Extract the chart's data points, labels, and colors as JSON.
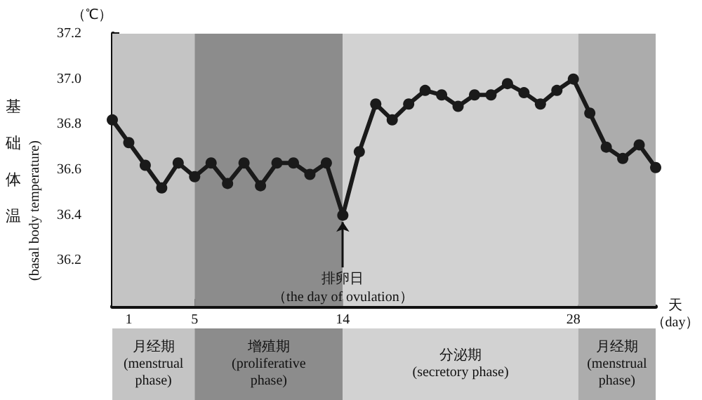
{
  "chart_data": {
    "type": "line",
    "xlabel": "天",
    "ylabel": "基础体温\n(basal body temperature)",
    "annotations": [
      "（℃）",
      "（day）",
      {
        "text": "排卵日",
        "x": 14,
        "y": 36.4
      },
      "（the day of ovulation）"
    ],
    "x": [
      0,
      1,
      2,
      3,
      4,
      5,
      6,
      7,
      8,
      9,
      10,
      11,
      12,
      13,
      14,
      15,
      16,
      17,
      18,
      19,
      20,
      21,
      22,
      23,
      24,
      25,
      26,
      27,
      28,
      29,
      30,
      31,
      32,
      33
    ],
    "series": [
      {
        "color": "#1a1a1a",
        "values": [
          36.82,
          36.72,
          36.62,
          36.52,
          36.63,
          36.57,
          36.63,
          36.54,
          36.63,
          36.53,
          36.63,
          36.63,
          36.58,
          36.63,
          36.4,
          36.68,
          36.89,
          36.82,
          36.89,
          36.95,
          36.93,
          36.88,
          36.93,
          36.93,
          36.98,
          36.94,
          36.89,
          36.95,
          37.0,
          36.85,
          36.7,
          36.65,
          36.71,
          36.61
        ]
      }
    ],
    "xlim": [
      0,
      33
    ],
    "xticks": [
      {
        "value": 1,
        "label": "1"
      },
      {
        "value": 2,
        "label": null
      },
      {
        "value": 3,
        "label": null
      },
      {
        "value": 4,
        "label": null
      },
      {
        "value": 5,
        "label": "5"
      },
      {
        "value": 6,
        "label": null
      },
      {
        "value": 7,
        "label": null
      },
      {
        "value": 8,
        "label": null
      },
      {
        "value": 9,
        "label": null
      },
      {
        "value": 10,
        "label": null
      },
      {
        "value": 11,
        "label": null
      },
      {
        "value": 12,
        "label": null
      },
      {
        "value": 13,
        "label": null
      },
      {
        "value": 14,
        "label": "14"
      },
      {
        "value": 15,
        "label": null
      },
      {
        "value": 16,
        "label": null
      },
      {
        "value": 17,
        "label": null
      },
      {
        "value": 18,
        "label": null
      },
      {
        "value": 19,
        "label": null
      },
      {
        "value": 20,
        "label": null
      },
      {
        "value": 21,
        "label": null
      },
      {
        "value": 22,
        "label": null
      },
      {
        "value": 23,
        "label": null
      },
      {
        "value": 24,
        "label": null
      },
      {
        "value": 25,
        "label": null
      },
      {
        "value": 26,
        "label": null
      },
      {
        "value": 27,
        "label": null
      },
      {
        "value": 28,
        "label": "28"
      },
      {
        "value": 29,
        "label": null
      },
      {
        "value": 30,
        "label": null
      },
      {
        "value": 31,
        "label": null
      },
      {
        "value": 32,
        "label": null
      }
    ],
    "ylim": [
      36.0,
      37.2
    ],
    "yticks": [
      {
        "value": 36.1,
        "label": null
      },
      {
        "value": 36.2,
        "label": "36.2"
      },
      {
        "value": 36.3,
        "label": null
      },
      {
        "value": 36.4,
        "label": "36.4"
      },
      {
        "value": 36.5,
        "label": null
      },
      {
        "value": 36.6,
        "label": "36.6"
      },
      {
        "value": 36.7,
        "label": null
      },
      {
        "value": 36.8,
        "label": "36.8"
      },
      {
        "value": 36.9,
        "label": null
      },
      {
        "value": 37.0,
        "label": "37.0"
      },
      {
        "value": 37.1,
        "label": null
      },
      {
        "value": 37.2,
        "label": "37.2"
      }
    ],
    "bands": [
      {
        "axis": "x",
        "from": 0,
        "to": 5,
        "label": "月经期\n(menstrual\nphase)",
        "color": "#c4c4c4"
      },
      {
        "axis": "x",
        "from": 5,
        "to": 14,
        "label": "增殖期\n(proliferative\nphase)",
        "color": "#8c8c8c"
      },
      {
        "axis": "x",
        "from": 14,
        "to": 28.3,
        "label": "分泌期\n(secretory phase)",
        "color": "#d2d2d2"
      },
      {
        "axis": "x",
        "from": 28.3,
        "to": 33,
        "label": "月经期\n(menstrual\nphase)",
        "color": "#acacac"
      }
    ],
    "marker": "circle",
    "line_style": "solid",
    "grid": false
  }
}
